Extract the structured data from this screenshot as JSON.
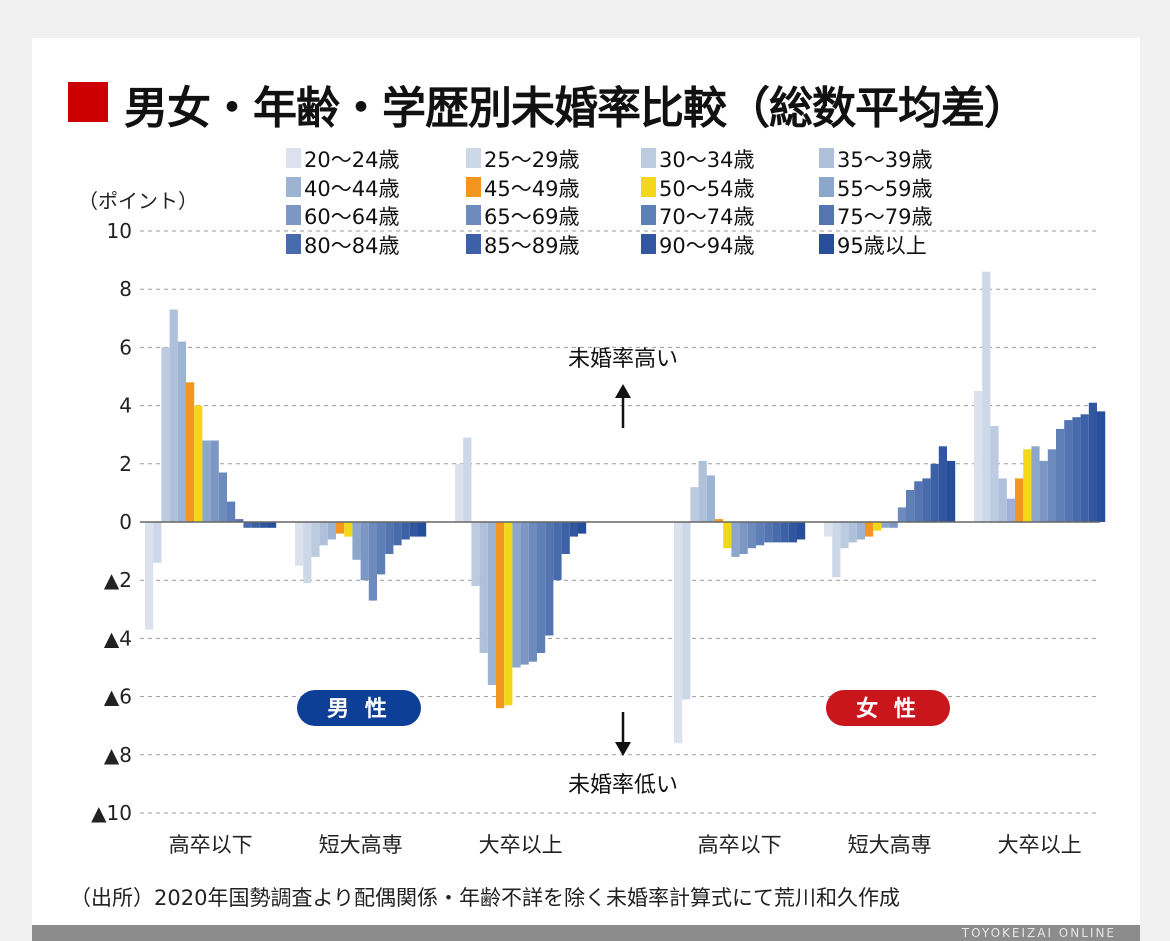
{
  "title": "男女・年齢・学歴別未婚率比較（総数平均差）",
  "unit_label": "（ポイント）",
  "source": "（出所）2020年国勢調査より配偶関係・年齢不詳を除く未婚率計算式にて荒川和久作成",
  "footer_text": "TOYOKEIZAI ONLINE",
  "annotations": {
    "up": "未婚率高い",
    "down": "未婚率低い",
    "male": "男 性",
    "female": "女 性"
  },
  "colors": {
    "title_mark": "#cc0000",
    "male_pill": "#0d3f96",
    "female_pill": "#c9151c",
    "bars": [
      "#dbe2ee",
      "#ccd7e7",
      "#bdcbe1",
      "#aec0da",
      "#9db3d3",
      "#f2961f",
      "#f2d71b",
      "#8da6cb",
      "#7c97c4",
      "#6e8bbe",
      "#5f7fb8",
      "#5475b2",
      "#486bac",
      "#3d61a6",
      "#3257a0",
      "#274e9a"
    ]
  },
  "chart_data": {
    "type": "bar",
    "title": "男女・年齢・学歴別未婚率比較（総数平均差）",
    "ylabel": "（ポイント）",
    "xlabel": "",
    "ylim": [
      -10,
      10
    ],
    "yticks": [
      10,
      8,
      6,
      4,
      2,
      0,
      -2,
      -4,
      -6,
      -8,
      -10
    ],
    "ytick_labels": [
      "10",
      "8",
      "6",
      "4",
      "2",
      "0",
      "▲2",
      "▲4",
      "▲6",
      "▲8",
      "▲10"
    ],
    "grid": true,
    "legend_position": "top",
    "series_names": [
      "20〜24歳",
      "25〜29歳",
      "30〜34歳",
      "35〜39歳",
      "40〜44歳",
      "45〜49歳",
      "50〜54歳",
      "55〜59歳",
      "60〜64歳",
      "65〜69歳",
      "70〜74歳",
      "75〜79歳",
      "80〜84歳",
      "85〜89歳",
      "90〜94歳",
      "95歳以上"
    ],
    "groups": [
      {
        "sex": "男性",
        "category": "高卒以下",
        "values": [
          -3.7,
          -1.4,
          6.0,
          7.3,
          6.2,
          4.8,
          4.0,
          2.8,
          2.8,
          1.7,
          0.7,
          0.1,
          -0.2,
          -0.2,
          -0.2,
          -0.2
        ]
      },
      {
        "sex": "男性",
        "category": "短大高専",
        "values": [
          -1.5,
          -2.1,
          -1.2,
          -0.8,
          -0.6,
          -0.4,
          -0.5,
          -1.3,
          -2.0,
          -2.7,
          -1.8,
          -1.1,
          -0.8,
          -0.6,
          -0.5,
          -0.5
        ]
      },
      {
        "sex": "男性",
        "category": "大卒以上",
        "values": [
          2.0,
          2.9,
          -2.2,
          -4.5,
          -5.6,
          -6.4,
          -6.3,
          -5.0,
          -4.9,
          -4.8,
          -4.5,
          -3.9,
          -2.0,
          -1.1,
          -0.5,
          -0.4
        ]
      },
      {
        "sex": "女性",
        "category": "高卒以下",
        "values": [
          -7.6,
          -6.1,
          1.2,
          2.1,
          1.6,
          0.1,
          -0.9,
          -1.2,
          -1.1,
          -0.9,
          -0.8,
          -0.7,
          -0.7,
          -0.7,
          -0.7,
          -0.6
        ]
      },
      {
        "sex": "女性",
        "category": "短大高専",
        "values": [
          -0.5,
          -1.9,
          -0.9,
          -0.7,
          -0.6,
          -0.5,
          -0.3,
          -0.2,
          -0.2,
          0.5,
          1.1,
          1.4,
          1.5,
          2.0,
          2.6,
          2.1
        ]
      },
      {
        "sex": "女性",
        "category": "大卒以上",
        "values": [
          4.5,
          8.6,
          3.3,
          1.5,
          0.8,
          1.5,
          2.5,
          2.6,
          2.1,
          2.5,
          3.2,
          3.5,
          3.6,
          3.7,
          4.1,
          3.8
        ]
      }
    ]
  }
}
